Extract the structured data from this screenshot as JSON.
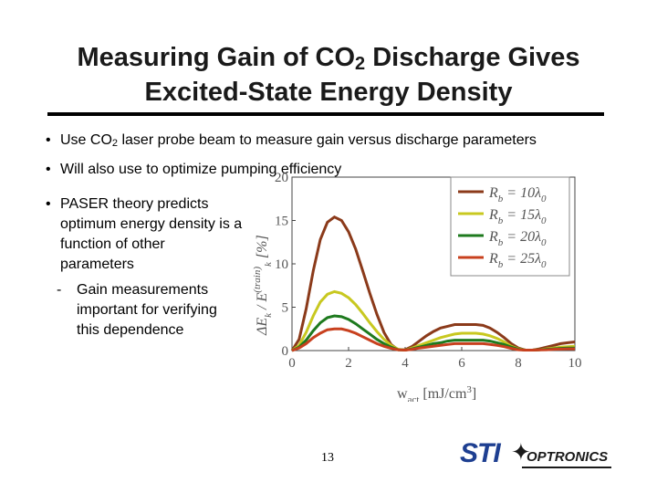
{
  "slide": {
    "title_line1_pre": "Measuring Gain of CO",
    "title_line1_sub": "2",
    "title_line1_post": " Discharge Gives",
    "title_line2": "Excited-State Energy Density",
    "bullets": {
      "b1_pre": "Use CO",
      "b1_sub": "2",
      "b1_post": " laser probe beam to measure gain versus discharge parameters",
      "b2": "Will also use to optimize pumping efficiency",
      "b3": "PASER theory predicts optimum energy density is a function of other parameters",
      "sub1": "Gain measurements important for verifying this dependence"
    },
    "bullet_glyph": "•",
    "dash_glyph": "-",
    "page_number": "13"
  },
  "logo": {
    "text_sti": "STI",
    "text_optronics": "OPTRONICS",
    "star_glyph": "✦"
  },
  "chart_data": {
    "type": "line",
    "xlabel": "w_act [mJ/cm³]",
    "ylabel": "ΔE_k / E_k^(train) [%]",
    "xlim": [
      0,
      10
    ],
    "ylim": [
      0,
      20
    ],
    "xticks": [
      0,
      2,
      4,
      6,
      8,
      10
    ],
    "yticks": [
      0,
      5,
      10,
      15,
      20
    ],
    "grid": false,
    "legend_position": "top-right",
    "x": [
      0,
      0.25,
      0.5,
      0.75,
      1.0,
      1.25,
      1.5,
      1.75,
      2.0,
      2.25,
      2.5,
      2.75,
      3.0,
      3.25,
      3.5,
      3.75,
      4.0,
      4.25,
      4.5,
      4.75,
      5.0,
      5.25,
      5.5,
      5.75,
      6.0,
      6.25,
      6.5,
      6.75,
      7.0,
      7.25,
      7.5,
      7.75,
      8.0,
      8.25,
      8.5,
      8.75,
      9.0,
      9.25,
      9.5,
      9.75,
      10.0
    ],
    "series": [
      {
        "name": "Rb = 10λ0",
        "color": "#8b3a1a",
        "values": [
          0,
          1.3,
          4.8,
          9.2,
          12.8,
          14.8,
          15.4,
          15.0,
          13.7,
          11.7,
          9.2,
          6.6,
          4.2,
          2.1,
          0.7,
          0.1,
          0.1,
          0.5,
          1.1,
          1.7,
          2.2,
          2.6,
          2.8,
          3.0,
          3.0,
          3.0,
          3.0,
          2.9,
          2.6,
          2.1,
          1.5,
          0.8,
          0.3,
          0.05,
          0.05,
          0.2,
          0.4,
          0.6,
          0.8,
          0.9,
          1.0
        ]
      },
      {
        "name": "Rb = 15λ0",
        "color": "#c8c820",
        "values": [
          0,
          0.6,
          2.1,
          4.0,
          5.6,
          6.5,
          6.8,
          6.6,
          6.1,
          5.3,
          4.3,
          3.2,
          2.2,
          1.3,
          0.6,
          0.15,
          0.05,
          0.3,
          0.6,
          0.9,
          1.2,
          1.5,
          1.7,
          1.9,
          2.0,
          2.0,
          2.0,
          1.9,
          1.7,
          1.4,
          1.0,
          0.5,
          0.2,
          0.05,
          0.05,
          0.1,
          0.2,
          0.3,
          0.4,
          0.45,
          0.5
        ]
      },
      {
        "name": "Rb = 20λ0",
        "color": "#1e7a1e",
        "values": [
          0,
          0.4,
          1.2,
          2.3,
          3.2,
          3.8,
          4.0,
          3.9,
          3.6,
          3.1,
          2.5,
          1.9,
          1.3,
          0.8,
          0.4,
          0.1,
          0.05,
          0.2,
          0.4,
          0.6,
          0.8,
          0.9,
          1.1,
          1.2,
          1.2,
          1.2,
          1.2,
          1.2,
          1.1,
          0.9,
          0.7,
          0.4,
          0.15,
          0.05,
          0.05,
          0.1,
          0.15,
          0.2,
          0.25,
          0.3,
          0.3
        ]
      },
      {
        "name": "Rb = 25λ0",
        "color": "#c8401e",
        "values": [
          0,
          0.3,
          0.8,
          1.5,
          2.0,
          2.4,
          2.5,
          2.5,
          2.3,
          2.0,
          1.6,
          1.2,
          0.8,
          0.5,
          0.25,
          0.1,
          0.05,
          0.15,
          0.3,
          0.4,
          0.5,
          0.6,
          0.7,
          0.8,
          0.8,
          0.8,
          0.8,
          0.8,
          0.7,
          0.6,
          0.45,
          0.25,
          0.1,
          0.05,
          0.05,
          0.07,
          0.1,
          0.15,
          0.17,
          0.2,
          0.2
        ]
      }
    ],
    "legend_labels": [
      {
        "pre": "R",
        "sub": "b",
        "mid": " = 10λ",
        "sub2": "0"
      },
      {
        "pre": "R",
        "sub": "b",
        "mid": " = 15λ",
        "sub2": "0"
      },
      {
        "pre": "R",
        "sub": "b",
        "mid": " = 20λ",
        "sub2": "0"
      },
      {
        "pre": "R",
        "sub": "b",
        "mid": " = 25λ",
        "sub2": "0"
      }
    ],
    "ylabel_parts": {
      "delta": "ΔE",
      "k": "k",
      "slash": " / E",
      "sup": "(train)",
      "unit": " [%]"
    },
    "xlabel_parts": {
      "w": "w",
      "sub": "act",
      "unit": " [mJ/cm",
      "sup": "3",
      "close": "]"
    }
  }
}
